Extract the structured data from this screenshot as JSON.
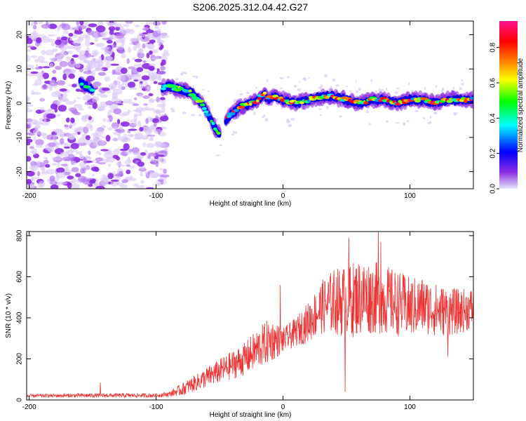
{
  "title": "S206.2025.312.04.42.G27",
  "chart_data": [
    {
      "type": "heatmap",
      "name": "spectrogram",
      "xlabel": "Height of straight line (km)",
      "ylabel": "Frequency (Hz)",
      "xlim": [
        -202,
        150
      ],
      "ylim": [
        -25,
        24
      ],
      "xticks": [
        -200,
        -100,
        0,
        100
      ],
      "yticks": [
        -20,
        -10,
        0,
        10,
        20
      ],
      "xtick_labels": [
        "-200",
        "-100",
        "0",
        "100"
      ],
      "ytick_labels": [
        "-20",
        "-10",
        "0",
        "10",
        "20"
      ],
      "colorbar": {
        "label": "Normalized spectral amplitude",
        "range": [
          0,
          0.95
        ],
        "ticks": [
          0,
          0.2,
          0.4,
          0.6,
          0.8
        ],
        "tick_labels": [
          "0.0",
          "0.2",
          "0.4",
          "0.6",
          "0.8"
        ],
        "colors": [
          "#e6e6fa",
          "#8a2be2",
          "#0000ff",
          "#00ffff",
          "#00ff00",
          "#ffff00",
          "#ff7f00",
          "#ff0000",
          "#ff1493"
        ]
      },
      "ridge": {
        "description": "frequency of the strongest spectral component vs height",
        "x": [
          -202,
          -175,
          -160,
          -150,
          -140,
          -125,
          -110,
          -100,
          -90,
          -80,
          -72,
          -64,
          -58,
          -54,
          -50,
          -45,
          -40,
          -33,
          -26,
          -19,
          -15,
          -12,
          -8,
          0,
          10,
          20,
          30,
          40,
          50,
          60,
          70,
          80,
          90,
          100,
          110,
          120,
          130,
          140,
          150
        ],
        "y": [
          9,
          8,
          6,
          4,
          5,
          6,
          5,
          4,
          5,
          4,
          3,
          0,
          -4,
          -7,
          -9,
          -5,
          -3,
          -1,
          0,
          1,
          3,
          1,
          2,
          1,
          0,
          1,
          2,
          2,
          1,
          0,
          1,
          1,
          0,
          1,
          1,
          0,
          1,
          1,
          1
        ]
      },
      "strong_segments": [
        {
          "x": [
            -160,
            -150
          ],
          "amp": 0.45
        },
        {
          "x": [
            -95,
            -50
          ],
          "amp": 0.5
        },
        {
          "x": [
            -45,
            150
          ],
          "amp": 0.75
        }
      ],
      "noise_region": {
        "x": [
          -202,
          -92
        ],
        "y": [
          -25,
          24
        ]
      }
    },
    {
      "type": "line",
      "name": "snr",
      "color": "#ee3333",
      "xlabel": "Height of straight line (km)",
      "ylabel": "SNR (10 * v/v)",
      "xlim": [
        -202,
        150
      ],
      "ylim": [
        0,
        820
      ],
      "xticks": [
        -200,
        -100,
        0,
        100
      ],
      "yticks": [
        0,
        200,
        400,
        600,
        800
      ],
      "xtick_labels": [
        "-200",
        "-100",
        "0",
        "100"
      ],
      "ytick_labels": [
        "0",
        "200",
        "400",
        "600",
        "800"
      ],
      "envelope": {
        "x": [
          -202,
          -150,
          -100,
          -90,
          -80,
          -70,
          -60,
          -50,
          -40,
          -30,
          -20,
          -10,
          0,
          10,
          20,
          30,
          40,
          50,
          60,
          70,
          80,
          90,
          100,
          110,
          120,
          130,
          140,
          150
        ],
        "mean": [
          20,
          22,
          22,
          28,
          50,
          80,
          110,
          140,
          170,
          200,
          250,
          290,
          290,
          330,
          380,
          450,
          480,
          480,
          500,
          500,
          490,
          470,
          450,
          460,
          440,
          430,
          430,
          450
        ],
        "amplitude": [
          8,
          10,
          10,
          12,
          30,
          40,
          50,
          60,
          70,
          80,
          100,
          110,
          60,
          70,
          100,
          130,
          160,
          180,
          190,
          180,
          170,
          160,
          150,
          140,
          130,
          120,
          110,
          100
        ]
      },
      "peaks": [
        {
          "x": -144,
          "y": 85
        },
        {
          "x": -2,
          "y": 560
        },
        {
          "x": 49,
          "y": 40
        },
        {
          "x": 52,
          "y": 790
        },
        {
          "x": 75,
          "y": 818
        },
        {
          "x": 77,
          "y": 770
        },
        {
          "x": 130,
          "y": 210
        }
      ]
    }
  ]
}
